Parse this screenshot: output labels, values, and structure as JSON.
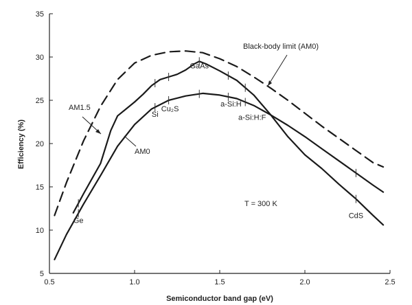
{
  "chart_data": {
    "type": "line",
    "xlabel": "Semiconductor band gap (eV)",
    "ylabel": "Efficiency (%)",
    "xlim": [
      0.5,
      2.5
    ],
    "ylim": [
      5,
      35
    ],
    "x_ticks": [
      "0.5",
      "1.0",
      "1.5",
      "2.0",
      "2.5"
    ],
    "y_ticks": [
      "5",
      "10",
      "15",
      "20",
      "25",
      "30",
      "35"
    ],
    "grid": false,
    "series": [
      {
        "name": "Black-body limit (AM0)",
        "style": "dashed",
        "x": [
          0.53,
          0.6,
          0.7,
          0.8,
          0.9,
          1.0,
          1.1,
          1.2,
          1.3,
          1.4,
          1.5,
          1.6,
          1.7,
          1.8,
          1.9,
          2.0,
          2.1,
          2.2,
          2.3,
          2.4,
          2.46
        ],
        "y": [
          11.7,
          15.5,
          20.3,
          24.3,
          27.4,
          29.3,
          30.2,
          30.6,
          30.7,
          30.5,
          29.8,
          28.9,
          27.7,
          26.4,
          25.0,
          23.5,
          22.0,
          20.6,
          19.2,
          17.8,
          17.3
        ]
      },
      {
        "name": "AM1.5",
        "x": [
          0.64,
          0.7,
          0.8,
          0.86,
          0.9,
          0.95,
          1.0,
          1.05,
          1.1,
          1.15,
          1.2,
          1.25,
          1.3,
          1.35,
          1.38,
          1.42,
          1.5,
          1.6,
          1.7,
          1.8,
          1.9,
          2.0,
          2.1,
          2.2,
          2.3,
          2.4,
          2.46
        ],
        "y": [
          12.0,
          14.2,
          17.7,
          21.5,
          23.2,
          24.0,
          24.8,
          25.7,
          26.7,
          27.4,
          27.7,
          28.0,
          28.5,
          29.2,
          29.5,
          29.2,
          28.4,
          27.3,
          25.6,
          23.3,
          20.8,
          18.7,
          17.1,
          15.3,
          13.6,
          11.7,
          10.6
        ]
      },
      {
        "name": "AM0",
        "x": [
          0.53,
          0.6,
          0.7,
          0.8,
          0.9,
          1.0,
          1.1,
          1.2,
          1.3,
          1.4,
          1.5,
          1.6,
          1.7,
          1.8,
          1.9,
          2.0,
          2.1,
          2.2,
          2.3,
          2.4,
          2.46
        ],
        "y": [
          6.6,
          9.5,
          13.0,
          16.3,
          19.7,
          22.2,
          24.0,
          25.0,
          25.5,
          25.8,
          25.6,
          25.2,
          24.4,
          23.3,
          22.1,
          20.8,
          19.4,
          18.0,
          16.6,
          15.2,
          14.4
        ]
      }
    ],
    "annotations": [
      {
        "text": "Black-body limit (AM0)"
      },
      {
        "text": "AM1.5"
      },
      {
        "text": "AM0"
      },
      {
        "text": "T = 300 K"
      }
    ],
    "materials": [
      {
        "name": "Ge",
        "band_gap": 0.67
      },
      {
        "name": "Si",
        "band_gap": 1.12
      },
      {
        "name": "Cu₂S",
        "band_gap": 1.2
      },
      {
        "name": "GaAs",
        "band_gap": 1.38
      },
      {
        "name": "a-Si:H",
        "band_gap": 1.55
      },
      {
        "name": "a-Si:H:F",
        "band_gap": 1.65
      },
      {
        "name": "CdS",
        "band_gap": 2.3
      }
    ]
  }
}
